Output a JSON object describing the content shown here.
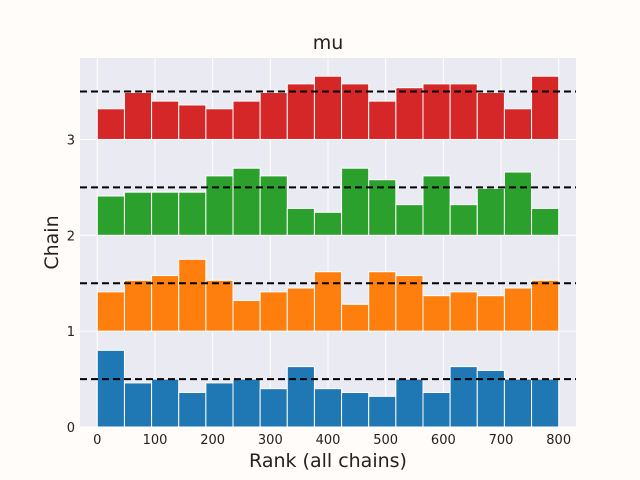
{
  "chart_data": {
    "type": "bar",
    "title": "mu",
    "xlabel": "Rank (all chains)",
    "ylabel": "Chain",
    "xlim": [
      -30,
      830
    ],
    "ylim": [
      0,
      3.85
    ],
    "x_ticks": [
      0,
      100,
      200,
      300,
      400,
      500,
      600,
      700,
      800
    ],
    "x_tick_labels": [
      "0",
      "100",
      "200",
      "300",
      "400",
      "500",
      "600",
      "700",
      "800"
    ],
    "y_ticks": [
      0,
      1,
      2,
      3
    ],
    "y_tick_labels": [
      "0",
      "1",
      "2",
      "3"
    ],
    "bin_edges": [
      0,
      47.06,
      94.12,
      141.18,
      188.24,
      235.29,
      282.35,
      329.41,
      376.47,
      423.53,
      470.59,
      517.65,
      564.71,
      611.76,
      658.82,
      705.88,
      752.94,
      800
    ],
    "reference_line": {
      "style": "dashed",
      "offset": 0.5
    },
    "grid": true,
    "background": "#eaeaf2",
    "series": [
      {
        "chain": 0,
        "color": "#1f77b4",
        "values": [
          0.8,
          0.46,
          0.5,
          0.36,
          0.46,
          0.5,
          0.4,
          0.63,
          0.4,
          0.36,
          0.32,
          0.5,
          0.36,
          0.63,
          0.59,
          0.5,
          0.5
        ]
      },
      {
        "chain": 1,
        "color": "#ff7f0e",
        "values": [
          0.41,
          0.53,
          0.58,
          0.75,
          0.53,
          0.32,
          0.41,
          0.45,
          0.62,
          0.28,
          0.62,
          0.58,
          0.37,
          0.41,
          0.37,
          0.45,
          0.53
        ]
      },
      {
        "chain": 2,
        "color": "#2ca02c",
        "values": [
          0.41,
          0.45,
          0.45,
          0.45,
          0.62,
          0.7,
          0.62,
          0.28,
          0.24,
          0.7,
          0.58,
          0.32,
          0.62,
          0.32,
          0.49,
          0.66,
          0.28
        ]
      },
      {
        "chain": 3,
        "color": "#d62728",
        "values": [
          0.32,
          0.49,
          0.4,
          0.36,
          0.32,
          0.4,
          0.49,
          0.58,
          0.66,
          0.58,
          0.4,
          0.54,
          0.58,
          0.58,
          0.49,
          0.32,
          0.66
        ]
      }
    ]
  }
}
